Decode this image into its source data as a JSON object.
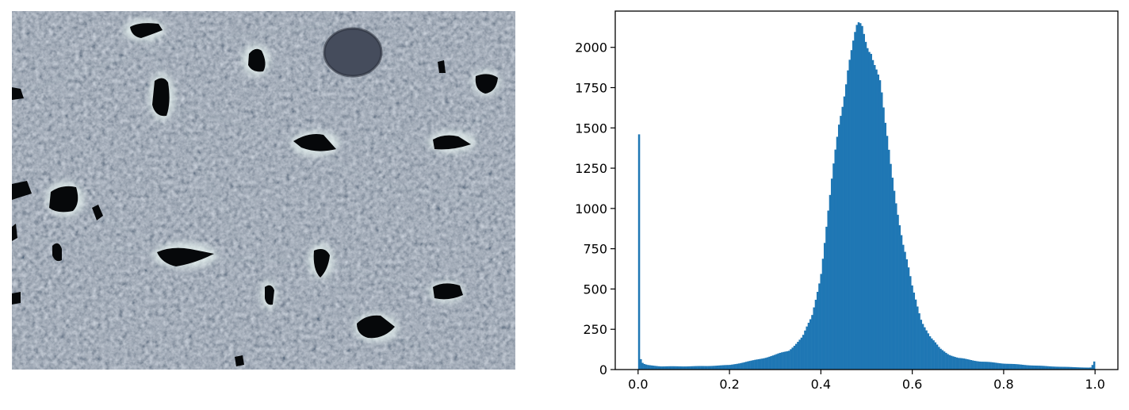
{
  "figure": {
    "panels": 2,
    "image_panel": {
      "colormap": "bone",
      "axes_visible": false
    }
  },
  "chart_data": {
    "type": "bar",
    "xlim": [
      -0.05,
      1.05
    ],
    "ylim": [
      0,
      2225
    ],
    "grid": false,
    "bar_color": "#1f77b4",
    "xticks": [
      0.0,
      0.2,
      0.4,
      0.6,
      0.8,
      1.0
    ],
    "xtick_labels": [
      "0.0",
      "0.2",
      "0.4",
      "0.6",
      "0.8",
      "1.0"
    ],
    "yticks": [
      0,
      250,
      500,
      750,
      1000,
      1250,
      1500,
      1750,
      2000
    ],
    "ytick_labels": [
      "0",
      "250",
      "500",
      "750",
      "1000",
      "1250",
      "1500",
      "1750",
      "2000"
    ],
    "bins": 256,
    "hist_anchor_x": [
      0.0,
      0.004,
      0.008,
      0.012,
      0.02,
      0.05,
      0.1,
      0.15,
      0.2,
      0.25,
      0.3,
      0.33,
      0.36,
      0.38,
      0.4,
      0.42,
      0.44,
      0.46,
      0.48,
      0.49,
      0.5,
      0.51,
      0.52,
      0.53,
      0.54,
      0.56,
      0.58,
      0.6,
      0.62,
      0.64,
      0.66,
      0.68,
      0.7,
      0.75,
      0.8,
      0.85,
      0.9,
      0.95,
      0.99,
      1.0
    ],
    "hist_anchor_y": [
      1460,
      80,
      45,
      35,
      28,
      20,
      20,
      22,
      28,
      55,
      90,
      120,
      200,
      330,
      600,
      1050,
      1550,
      1920,
      2080,
      2100,
      2050,
      2030,
      1900,
      1750,
      1500,
      1150,
      780,
      500,
      310,
      200,
      130,
      95,
      72,
      50,
      38,
      28,
      20,
      15,
      12,
      50
    ]
  }
}
